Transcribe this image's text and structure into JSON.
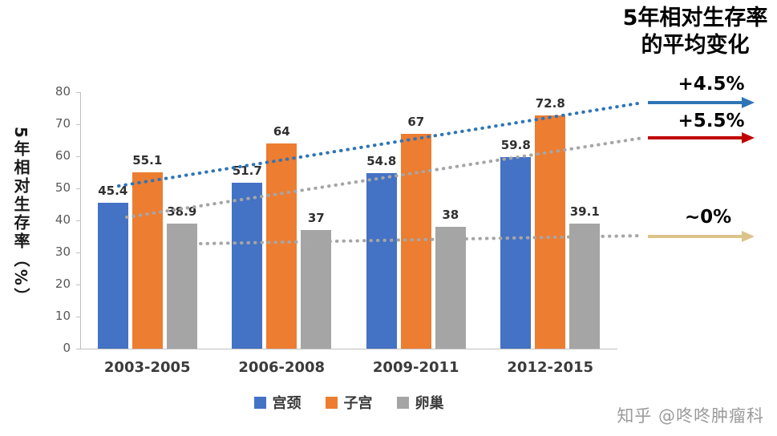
{
  "chart_data": {
    "type": "bar",
    "right_title": [
      "5年相对生存率",
      "的平均变化"
    ],
    "ylabel": "5年相对生存率（%）",
    "ylim": [
      0,
      80
    ],
    "yticks": [
      0,
      10,
      20,
      30,
      40,
      50,
      60,
      70,
      80
    ],
    "categories": [
      "2003-2005",
      "2006-2008",
      "2009-2011",
      "2012-2015"
    ],
    "series": [
      {
        "name": "宫颈",
        "color": "#4472C4",
        "values": [
          45.4,
          51.7,
          54.8,
          59.8
        ]
      },
      {
        "name": "子宫",
        "color": "#ED7D31",
        "values": [
          55.1,
          64,
          67,
          72.8
        ]
      },
      {
        "name": "卵巢",
        "color": "#A5A5A5",
        "values": [
          38.9,
          37,
          38,
          39.1
        ]
      }
    ],
    "grid": "off",
    "legend_position": "bottom",
    "annotations": [
      {
        "label": "+4.5%",
        "line_color": "#2E75B6",
        "arrow_color": "#2E75B6"
      },
      {
        "label": "+5.5%",
        "line_color": "#A6A6A6",
        "arrow_color": "#C00000"
      },
      {
        "label": "~0%",
        "line_color": "#A6A6A6",
        "arrow_color": "#DCC389"
      }
    ],
    "watermark": "知乎 @咚咚肿瘤科"
  }
}
